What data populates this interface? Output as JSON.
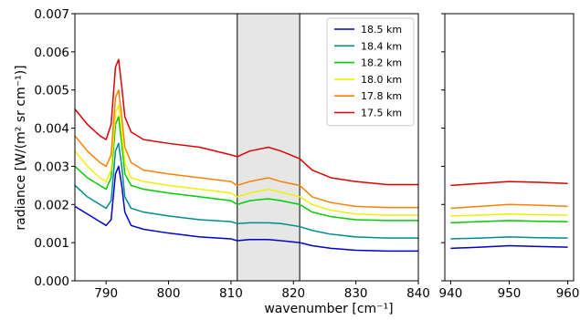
{
  "chart_data": {
    "type": "line",
    "xlabel": "wavenumber [cm⁻¹]",
    "ylabel": "radiance [W/(m² sr cm⁻¹)]",
    "ylim": [
      0,
      0.007
    ],
    "yticks": [
      "0.000",
      "0.001",
      "0.002",
      "0.003",
      "0.004",
      "0.005",
      "0.006",
      "0.007"
    ],
    "panels": [
      {
        "xlim": [
          785,
          840
        ],
        "xticks": [
          "790",
          "800",
          "810",
          "820",
          "830",
          "840"
        ]
      },
      {
        "xlim": [
          939,
          961
        ],
        "xticks": [
          "940",
          "950",
          "960"
        ]
      }
    ],
    "shaded_region": {
      "x": [
        811,
        821
      ]
    },
    "legend_position": "top-right of left panel",
    "series": [
      {
        "name": "18.5 km",
        "color": "#0000cc",
        "left": [
          [
            785,
            0.00195
          ],
          [
            787,
            0.00175
          ],
          [
            789,
            0.00155
          ],
          [
            790,
            0.00145
          ],
          [
            790.8,
            0.0016
          ],
          [
            791.5,
            0.0028
          ],
          [
            792,
            0.003
          ],
          [
            792.5,
            0.0025
          ],
          [
            793,
            0.0018
          ],
          [
            794,
            0.00145
          ],
          [
            796,
            0.00135
          ],
          [
            800,
            0.00125
          ],
          [
            805,
            0.00115
          ],
          [
            810,
            0.0011
          ],
          [
            811,
            0.00105
          ],
          [
            813,
            0.00108
          ],
          [
            816,
            0.00108
          ],
          [
            818,
            0.00105
          ],
          [
            821,
            0.001
          ],
          [
            823,
            0.00092
          ],
          [
            826,
            0.00085
          ],
          [
            830,
            0.0008
          ],
          [
            835,
            0.00078
          ],
          [
            840,
            0.00078
          ]
        ],
        "right": [
          [
            940,
            0.00085
          ],
          [
            945,
            0.00088
          ],
          [
            950,
            0.00092
          ],
          [
            955,
            0.0009
          ],
          [
            960,
            0.00088
          ]
        ]
      },
      {
        "name": "18.4 km",
        "color": "#008b8b",
        "left": [
          [
            785,
            0.0025
          ],
          [
            787,
            0.0022
          ],
          [
            789,
            0.002
          ],
          [
            790,
            0.0019
          ],
          [
            790.8,
            0.0021
          ],
          [
            791.5,
            0.0034
          ],
          [
            792,
            0.0036
          ],
          [
            792.5,
            0.003
          ],
          [
            793,
            0.0022
          ],
          [
            794,
            0.0019
          ],
          [
            796,
            0.0018
          ],
          [
            800,
            0.0017
          ],
          [
            805,
            0.0016
          ],
          [
            810,
            0.00155
          ],
          [
            811,
            0.0015
          ],
          [
            813,
            0.00152
          ],
          [
            816,
            0.00152
          ],
          [
            818,
            0.0015
          ],
          [
            821,
            0.00142
          ],
          [
            823,
            0.00132
          ],
          [
            826,
            0.00122
          ],
          [
            830,
            0.00115
          ],
          [
            835,
            0.00112
          ],
          [
            840,
            0.00112
          ]
        ],
        "right": [
          [
            940,
            0.0011
          ],
          [
            945,
            0.00112
          ],
          [
            950,
            0.00115
          ],
          [
            955,
            0.00113
          ],
          [
            960,
            0.00112
          ]
        ]
      },
      {
        "name": "18.2 km",
        "color": "#00cc00",
        "left": [
          [
            785,
            0.003
          ],
          [
            787,
            0.0027
          ],
          [
            789,
            0.0025
          ],
          [
            790,
            0.0024
          ],
          [
            790.8,
            0.0027
          ],
          [
            791.5,
            0.0041
          ],
          [
            792,
            0.0043
          ],
          [
            792.5,
            0.0036
          ],
          [
            793,
            0.0028
          ],
          [
            794,
            0.0025
          ],
          [
            796,
            0.0024
          ],
          [
            800,
            0.0023
          ],
          [
            805,
            0.0022
          ],
          [
            810,
            0.0021
          ],
          [
            811,
            0.002
          ],
          [
            813,
            0.0021
          ],
          [
            816,
            0.00215
          ],
          [
            818,
            0.0021
          ],
          [
            821,
            0.002
          ],
          [
            823,
            0.0018
          ],
          [
            826,
            0.00168
          ],
          [
            830,
            0.0016
          ],
          [
            835,
            0.00158
          ],
          [
            840,
            0.00158
          ]
        ],
        "right": [
          [
            940,
            0.00152
          ],
          [
            945,
            0.00155
          ],
          [
            950,
            0.00158
          ],
          [
            955,
            0.00156
          ],
          [
            960,
            0.00155
          ]
        ]
      },
      {
        "name": "18.0 km",
        "color": "#f0f000",
        "left": [
          [
            785,
            0.0034
          ],
          [
            787,
            0.003
          ],
          [
            789,
            0.0027
          ],
          [
            790,
            0.0026
          ],
          [
            790.8,
            0.0029
          ],
          [
            791.5,
            0.0044
          ],
          [
            792,
            0.0046
          ],
          [
            792.5,
            0.0039
          ],
          [
            793,
            0.0031
          ],
          [
            794,
            0.0027
          ],
          [
            796,
            0.0026
          ],
          [
            800,
            0.0025
          ],
          [
            805,
            0.0024
          ],
          [
            810,
            0.0023
          ],
          [
            811,
            0.0022
          ],
          [
            813,
            0.0023
          ],
          [
            816,
            0.0024
          ],
          [
            818,
            0.00232
          ],
          [
            821,
            0.0022
          ],
          [
            823,
            0.002
          ],
          [
            826,
            0.00185
          ],
          [
            830,
            0.00175
          ],
          [
            835,
            0.00172
          ],
          [
            840,
            0.00172
          ]
        ],
        "right": [
          [
            940,
            0.0017
          ],
          [
            945,
            0.00172
          ],
          [
            950,
            0.00175
          ],
          [
            955,
            0.00173
          ],
          [
            960,
            0.00172
          ]
        ]
      },
      {
        "name": "17.8 km",
        "color": "#ff8000",
        "left": [
          [
            785,
            0.0038
          ],
          [
            787,
            0.0034
          ],
          [
            789,
            0.0031
          ],
          [
            790,
            0.003
          ],
          [
            790.8,
            0.0033
          ],
          [
            791.5,
            0.0048
          ],
          [
            792,
            0.005
          ],
          [
            792.5,
            0.0043
          ],
          [
            793,
            0.0035
          ],
          [
            794,
            0.0031
          ],
          [
            796,
            0.0029
          ],
          [
            800,
            0.0028
          ],
          [
            805,
            0.0027
          ],
          [
            810,
            0.0026
          ],
          [
            811,
            0.0025
          ],
          [
            813,
            0.0026
          ],
          [
            816,
            0.0027
          ],
          [
            818,
            0.0026
          ],
          [
            821,
            0.0025
          ],
          [
            823,
            0.0022
          ],
          [
            826,
            0.00205
          ],
          [
            830,
            0.00195
          ],
          [
            835,
            0.00192
          ],
          [
            840,
            0.00192
          ]
        ],
        "right": [
          [
            940,
            0.0019
          ],
          [
            945,
            0.00195
          ],
          [
            950,
            0.002
          ],
          [
            955,
            0.00198
          ],
          [
            960,
            0.00195
          ]
        ]
      },
      {
        "name": "17.5 km",
        "color": "#dd0000",
        "left": [
          [
            785,
            0.0045
          ],
          [
            787,
            0.0041
          ],
          [
            789,
            0.0038
          ],
          [
            790,
            0.0037
          ],
          [
            790.8,
            0.0041
          ],
          [
            791.5,
            0.0056
          ],
          [
            792,
            0.0058
          ],
          [
            792.5,
            0.0051
          ],
          [
            793,
            0.0043
          ],
          [
            794,
            0.0039
          ],
          [
            796,
            0.0037
          ],
          [
            800,
            0.0036
          ],
          [
            805,
            0.0035
          ],
          [
            810,
            0.0033
          ],
          [
            811,
            0.00325
          ],
          [
            813,
            0.0034
          ],
          [
            816,
            0.0035
          ],
          [
            818,
            0.0034
          ],
          [
            821,
            0.0032
          ],
          [
            823,
            0.0029
          ],
          [
            826,
            0.0027
          ],
          [
            830,
            0.0026
          ],
          [
            835,
            0.00252
          ],
          [
            840,
            0.00252
          ]
        ],
        "right": [
          [
            940,
            0.0025
          ],
          [
            945,
            0.00255
          ],
          [
            950,
            0.0026
          ],
          [
            955,
            0.00258
          ],
          [
            960,
            0.00255
          ]
        ]
      }
    ]
  }
}
